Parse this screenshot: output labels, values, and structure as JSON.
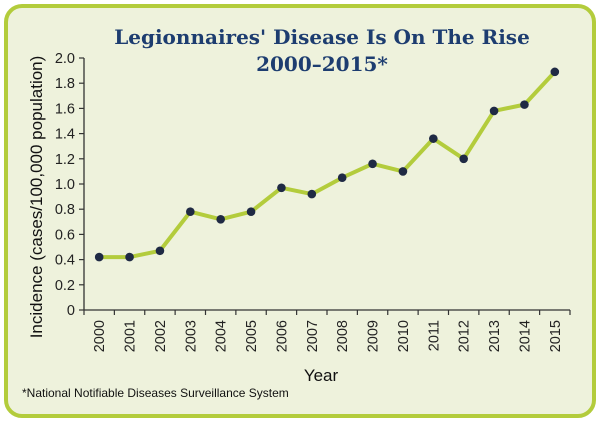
{
  "chart_data": {
    "type": "line",
    "title_line1": "Legionnaires' Disease Is On The Rise",
    "title_line2": "2000–2015*",
    "xlabel": "Year",
    "ylabel": "Incidence (cases/100,000 population)",
    "footnote": "*National Notifiable Diseases Surveillance System",
    "categories": [
      "2000",
      "2001",
      "2002",
      "2003",
      "2004",
      "2005",
      "2006",
      "2007",
      "2008",
      "2009",
      "2010",
      "2011",
      "2012",
      "2013",
      "2014",
      "2015"
    ],
    "values": [
      0.42,
      0.42,
      0.47,
      0.78,
      0.72,
      0.78,
      0.97,
      0.92,
      1.05,
      1.16,
      1.1,
      1.36,
      1.2,
      1.58,
      1.63,
      1.89
    ],
    "ylim": [
      0,
      2.0
    ],
    "yticks": [
      "0",
      "0.2",
      "0.4",
      "0.6",
      "0.8",
      "1.0",
      "1.2",
      "1.4",
      "1.6",
      "1.8",
      "2.0"
    ],
    "grid": false,
    "colors": {
      "line": "#b3cc3c",
      "marker": "#1f2a44",
      "panel_fill": "#eef2dc",
      "panel_border": "#b3cc3c",
      "title": "#1d3d70",
      "axis": "#333333"
    }
  }
}
